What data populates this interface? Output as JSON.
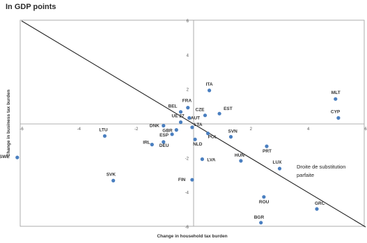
{
  "chart_data": {
    "type": "scatter",
    "title": "In GDP points",
    "xlabel": "Change in household tax burden",
    "ylabel": "Change in business tax burden",
    "xlim": [
      -6,
      6
    ],
    "ylim": [
      -6,
      6
    ],
    "x_ticks": [
      -6,
      -4,
      -2,
      2,
      4,
      6
    ],
    "y_ticks": [
      -6,
      -4,
      -2,
      2,
      4,
      6
    ],
    "grid": false,
    "colors": {
      "points": "#4a7fc0",
      "line": "#222222",
      "frame": "#999999"
    },
    "reference_line": {
      "label_lines": [
        "Droite de substitution",
        "parfaite"
      ],
      "slope": -1,
      "intercept": 0
    },
    "points": [
      {
        "label": "SWE",
        "x": -6.15,
        "y": -1.95
      },
      {
        "label": "LTU",
        "x": -3.1,
        "y": -0.7
      },
      {
        "label": "SVK",
        "x": -2.8,
        "y": -3.3
      },
      {
        "label": "IRL",
        "x": -1.45,
        "y": -1.2
      },
      {
        "label": "DEU",
        "x": -1.05,
        "y": -1.05
      },
      {
        "label": "DNK",
        "x": -1.05,
        "y": -0.1
      },
      {
        "label": "UE 27",
        "x": -0.45,
        "y": 0.1
      },
      {
        "label": "GBR",
        "x": -0.6,
        "y": -0.35
      },
      {
        "label": "ESP",
        "x": -0.75,
        "y": -0.6
      },
      {
        "label": "BEL",
        "x": -0.45,
        "y": 0.7
      },
      {
        "label": "FRA",
        "x": -0.2,
        "y": 0.95
      },
      {
        "label": "AUT",
        "x": -0.15,
        "y": 0.35
      },
      {
        "label": "CZE",
        "x": 0.4,
        "y": 0.5
      },
      {
        "label": "EST",
        "x": 0.9,
        "y": 0.6
      },
      {
        "label": "ITA",
        "x": 0.55,
        "y": 1.95
      },
      {
        "label": "LTA",
        "x": -0.05,
        "y": -0.2
      },
      {
        "label": "POL",
        "x": 0.5,
        "y": -0.55
      },
      {
        "label": "NLD",
        "x": 0.05,
        "y": -0.9
      },
      {
        "label": "SVN",
        "x": 1.3,
        "y": -0.75
      },
      {
        "label": "LVA",
        "x": 0.3,
        "y": -2.05
      },
      {
        "label": "FIN",
        "x": -0.05,
        "y": -3.25
      },
      {
        "label": "HUN",
        "x": 1.65,
        "y": -2.15
      },
      {
        "label": "PRT",
        "x": 2.55,
        "y": -1.3
      },
      {
        "label": "LUX",
        "x": 3.0,
        "y": -2.6
      },
      {
        "label": "ROU",
        "x": 2.45,
        "y": -4.25
      },
      {
        "label": "BGR",
        "x": 2.35,
        "y": -5.75
      },
      {
        "label": "GRC",
        "x": 4.3,
        "y": -4.95
      },
      {
        "label": "MLT",
        "x": 4.95,
        "y": 1.45
      },
      {
        "label": "CYP",
        "x": 5.05,
        "y": 0.35
      }
    ]
  }
}
